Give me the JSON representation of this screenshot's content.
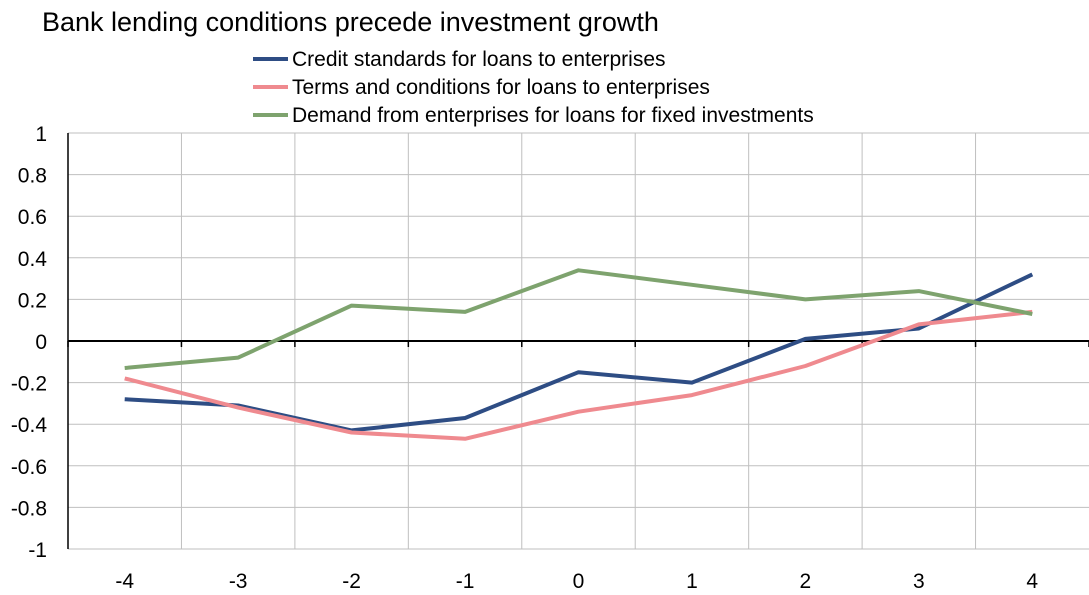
{
  "chart_data": {
    "type": "line",
    "title": "Bank lending conditions precede investment growth",
    "xlabel": "",
    "ylabel": "",
    "x": [
      -4,
      -3,
      -2,
      -1,
      0,
      1,
      2,
      3,
      4
    ],
    "x_tick_labels": [
      "-4",
      "-3",
      "-2",
      "-1",
      "0",
      "1",
      "2",
      "3",
      "4"
    ],
    "ylim": [
      -1,
      1
    ],
    "y_ticks": [
      1,
      0.8,
      0.6,
      0.4,
      0.2,
      0,
      -0.2,
      -0.4,
      -0.6,
      -0.8,
      -1
    ],
    "y_tick_labels": [
      "1",
      "0.8",
      "0.6",
      "0.4",
      "0.2",
      "0",
      "-0.2",
      "-0.4",
      "-0.6",
      "-0.8",
      "-1"
    ],
    "grid": true,
    "legend_position": "top",
    "series": [
      {
        "name": "Credit standards for loans to enterprises",
        "color": "#2e4d84",
        "values": [
          -0.28,
          -0.31,
          -0.43,
          -0.37,
          -0.15,
          -0.2,
          0.01,
          0.06,
          0.32
        ]
      },
      {
        "name": "Terms and conditions for loans to enterprises",
        "color": "#ef8a8f",
        "values": [
          -0.18,
          -0.32,
          -0.44,
          -0.47,
          -0.34,
          -0.26,
          -0.12,
          0.08,
          0.14
        ]
      },
      {
        "name": "Demand from enterprises for loans for fixed investments",
        "color": "#7ea36e",
        "values": [
          -0.13,
          -0.08,
          0.17,
          0.14,
          0.34,
          0.27,
          0.2,
          0.24,
          0.13
        ]
      }
    ]
  }
}
